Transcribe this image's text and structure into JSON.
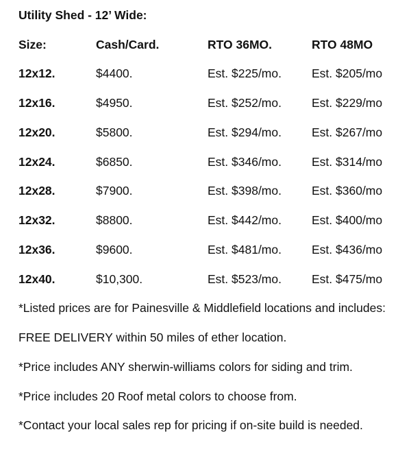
{
  "title": "Utility Shed - 12’ Wide:",
  "table": {
    "headers": [
      "Size:",
      "Cash/Card.",
      "RTO 36MO.",
      "RTO 48MO"
    ],
    "rows": [
      {
        "size": "12x12.",
        "cash": "$4400.",
        "rto36": "Est. $225/mo.",
        "rto48": "Est. $205/mo"
      },
      {
        "size": "12x16.",
        "cash": "$4950.",
        "rto36": "Est. $252/mo.",
        "rto48": "Est. $229/mo"
      },
      {
        "size": "12x20.",
        "cash": "$5800.",
        "rto36": "Est. $294/mo.",
        "rto48": "Est. $267/mo"
      },
      {
        "size": "12x24.",
        "cash": "$6850.",
        "rto36": "Est. $346/mo.",
        "rto48": "Est. $314/mo"
      },
      {
        "size": "12x28.",
        "cash": "$7900.",
        "rto36": "Est. $398/mo.",
        "rto48": "Est. $360/mo"
      },
      {
        "size": "12x32.",
        "cash": "$8800.",
        "rto36": "Est. $442/mo.",
        "rto48": "Est. $400/mo"
      },
      {
        "size": "12x36.",
        "cash": "$9600.",
        "rto36": "Est. $481/mo.",
        "rto48": "Est. $436/mo"
      },
      {
        "size": "12x40.",
        "cash": "$10,300.",
        "rto36": "Est. $523/mo.",
        "rto48": "Est. $475/mo"
      }
    ]
  },
  "notes": [
    "*Listed prices are for Painesville & Middlefield locations and includes:",
    "FREE DELIVERY within 50 miles of ether location.",
    "*Price includes ANY sherwin-williams colors for siding and trim.",
    "*Price includes 20 Roof metal colors to choose from.",
    "*Contact your local sales rep for pricing if on-site build is needed."
  ],
  "colors": {
    "text": "#111111",
    "background": "#ffffff"
  }
}
